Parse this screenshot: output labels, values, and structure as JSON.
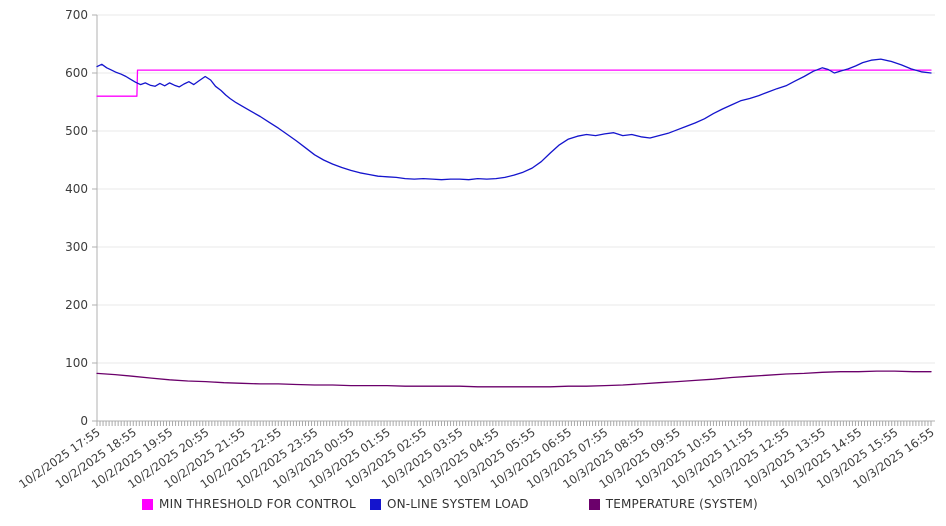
{
  "chart_data": {
    "type": "line",
    "title": "",
    "xlabel": "",
    "ylabel": "",
    "ylim": [
      0,
      700
    ],
    "y_ticks": [
      0,
      100,
      200,
      300,
      400,
      500,
      600,
      700
    ],
    "grid": "horizontal",
    "legend_position": "bottom",
    "x_minutes_range": [
      0,
      1380
    ],
    "minor_tick_interval_minutes": 5,
    "x_tick_interval_minutes": 60,
    "x_tick_labels": [
      "10/2/2025 17:55",
      "10/2/2025 18:55",
      "10/2/2025 19:55",
      "10/2/2025 20:55",
      "10/2/2025 21:55",
      "10/2/2025 22:55",
      "10/2/2025 23:55",
      "10/3/2025 00:55",
      "10/3/2025 01:55",
      "10/3/2025 02:55",
      "10/3/2025 03:55",
      "10/3/2025 04:55",
      "10/3/2025 05:55",
      "10/3/2025 06:55",
      "10/3/2025 07:55",
      "10/3/2025 08:55",
      "10/3/2025 09:55",
      "10/3/2025 10:55",
      "10/3/2025 11:55",
      "10/3/2025 12:55",
      "10/3/2025 13:55",
      "10/3/2025 14:55",
      "10/3/2025 15:55",
      "10/3/2025 16:55"
    ],
    "colors": {
      "grid": "#e8e8e8",
      "axis": "#b0b0b0",
      "tick": "#a8a8a8",
      "text": "#3c3c3c"
    },
    "series": [
      {
        "name": "MIN THRESHOLD FOR CONTROL",
        "color": "#ff00ff",
        "points": [
          [
            0,
            560
          ],
          [
            66,
            560
          ],
          [
            67,
            605
          ],
          [
            1380,
            605
          ]
        ]
      },
      {
        "name": "ON-LINE SYSTEM LOAD",
        "color": "#1414cd",
        "points": [
          [
            0,
            611
          ],
          [
            8,
            615
          ],
          [
            16,
            609
          ],
          [
            24,
            605
          ],
          [
            32,
            601
          ],
          [
            40,
            598
          ],
          [
            48,
            594
          ],
          [
            56,
            589
          ],
          [
            64,
            584
          ],
          [
            72,
            580
          ],
          [
            80,
            583
          ],
          [
            88,
            579
          ],
          [
            96,
            577
          ],
          [
            104,
            582
          ],
          [
            112,
            578
          ],
          [
            120,
            583
          ],
          [
            128,
            579
          ],
          [
            136,
            576
          ],
          [
            144,
            581
          ],
          [
            152,
            585
          ],
          [
            160,
            580
          ],
          [
            168,
            586
          ],
          [
            179,
            594
          ],
          [
            188,
            588
          ],
          [
            196,
            577
          ],
          [
            205,
            570
          ],
          [
            213,
            562
          ],
          [
            220,
            556
          ],
          [
            230,
            549
          ],
          [
            240,
            543
          ],
          [
            255,
            534
          ],
          [
            270,
            525
          ],
          [
            285,
            515
          ],
          [
            300,
            505
          ],
          [
            315,
            494
          ],
          [
            330,
            483
          ],
          [
            345,
            471
          ],
          [
            360,
            459
          ],
          [
            375,
            450
          ],
          [
            390,
            443
          ],
          [
            405,
            437
          ],
          [
            420,
            432
          ],
          [
            435,
            428
          ],
          [
            450,
            425
          ],
          [
            465,
            422
          ],
          [
            480,
            421
          ],
          [
            495,
            420
          ],
          [
            510,
            418
          ],
          [
            525,
            417
          ],
          [
            540,
            418
          ],
          [
            555,
            417
          ],
          [
            570,
            416
          ],
          [
            585,
            417
          ],
          [
            600,
            417
          ],
          [
            615,
            416
          ],
          [
            630,
            418
          ],
          [
            645,
            417
          ],
          [
            660,
            418
          ],
          [
            675,
            420
          ],
          [
            690,
            424
          ],
          [
            705,
            429
          ],
          [
            720,
            436
          ],
          [
            735,
            447
          ],
          [
            750,
            462
          ],
          [
            765,
            476
          ],
          [
            780,
            486
          ],
          [
            795,
            491
          ],
          [
            810,
            494
          ],
          [
            825,
            492
          ],
          [
            840,
            495
          ],
          [
            855,
            497
          ],
          [
            870,
            492
          ],
          [
            885,
            494
          ],
          [
            900,
            490
          ],
          [
            915,
            488
          ],
          [
            930,
            492
          ],
          [
            945,
            496
          ],
          [
            960,
            502
          ],
          [
            975,
            508
          ],
          [
            990,
            514
          ],
          [
            1005,
            521
          ],
          [
            1020,
            530
          ],
          [
            1035,
            538
          ],
          [
            1050,
            545
          ],
          [
            1065,
            552
          ],
          [
            1080,
            556
          ],
          [
            1095,
            561
          ],
          [
            1110,
            567
          ],
          [
            1125,
            573
          ],
          [
            1140,
            578
          ],
          [
            1155,
            586
          ],
          [
            1170,
            594
          ],
          [
            1185,
            603
          ],
          [
            1200,
            609
          ],
          [
            1210,
            606
          ],
          [
            1220,
            600
          ],
          [
            1232,
            604
          ],
          [
            1243,
            607
          ],
          [
            1255,
            612
          ],
          [
            1267,
            618
          ],
          [
            1281,
            622
          ],
          [
            1297,
            624
          ],
          [
            1314,
            620
          ],
          [
            1331,
            614
          ],
          [
            1347,
            607
          ],
          [
            1364,
            602
          ],
          [
            1380,
            600
          ]
        ]
      },
      {
        "name": "TEMPERATURE (SYSTEM)",
        "color": "#6b006b",
        "points": [
          [
            0,
            82
          ],
          [
            30,
            80
          ],
          [
            60,
            77
          ],
          [
            90,
            74
          ],
          [
            120,
            71
          ],
          [
            150,
            69
          ],
          [
            180,
            68
          ],
          [
            210,
            66
          ],
          [
            240,
            65
          ],
          [
            270,
            64
          ],
          [
            300,
            64
          ],
          [
            330,
            63
          ],
          [
            360,
            62
          ],
          [
            390,
            62
          ],
          [
            420,
            61
          ],
          [
            450,
            61
          ],
          [
            480,
            61
          ],
          [
            510,
            60
          ],
          [
            540,
            60
          ],
          [
            570,
            60
          ],
          [
            600,
            60
          ],
          [
            630,
            59
          ],
          [
            660,
            59
          ],
          [
            690,
            59
          ],
          [
            720,
            59
          ],
          [
            750,
            59
          ],
          [
            780,
            60
          ],
          [
            810,
            60
          ],
          [
            840,
            61
          ],
          [
            870,
            62
          ],
          [
            900,
            64
          ],
          [
            930,
            66
          ],
          [
            960,
            68
          ],
          [
            990,
            70
          ],
          [
            1020,
            72
          ],
          [
            1050,
            75
          ],
          [
            1080,
            77
          ],
          [
            1110,
            79
          ],
          [
            1140,
            81
          ],
          [
            1170,
            82
          ],
          [
            1200,
            84
          ],
          [
            1230,
            85
          ],
          [
            1260,
            85
          ],
          [
            1290,
            86
          ],
          [
            1320,
            86
          ],
          [
            1350,
            85
          ],
          [
            1380,
            85
          ]
        ]
      }
    ]
  }
}
